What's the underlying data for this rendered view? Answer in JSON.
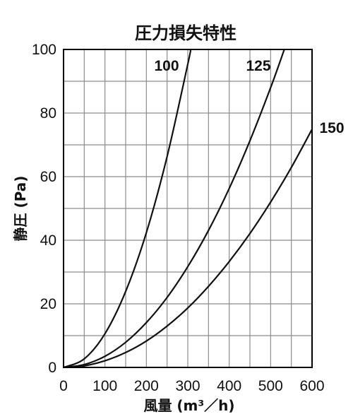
{
  "chart_data": {
    "type": "line",
    "title": "圧力損失特性",
    "xlabel": "風量 (m³／h)",
    "ylabel": "静圧 (Pa)",
    "xlim": [
      0,
      600
    ],
    "ylim": [
      0,
      100
    ],
    "x_ticks": [
      0,
      100,
      200,
      300,
      400,
      500,
      600
    ],
    "y_ticks": [
      0,
      20,
      40,
      60,
      80,
      100
    ],
    "grid": true,
    "grid_x_step": 50,
    "grid_y_step": 10,
    "legend": "inline labels at curve ends",
    "series": [
      {
        "name": "100",
        "x": [
          0,
          50,
          100,
          150,
          200,
          250,
          300,
          307
        ],
        "y": [
          0,
          2.7,
          10.6,
          23.9,
          42.4,
          66.3,
          95.4,
          100
        ]
      },
      {
        "name": "125",
        "x": [
          0,
          50,
          100,
          150,
          200,
          250,
          300,
          350,
          400,
          450,
          500,
          533
        ],
        "y": [
          0,
          0.9,
          3.5,
          7.9,
          14.1,
          22.0,
          31.7,
          43.1,
          56.3,
          71.3,
          88.0,
          100
        ]
      },
      {
        "name": "150",
        "x": [
          0,
          50,
          100,
          150,
          200,
          250,
          300,
          350,
          400,
          450,
          500,
          550,
          600
        ],
        "y": [
          0,
          0.5,
          2.1,
          4.7,
          8.3,
          13.0,
          18.7,
          25.5,
          33.3,
          42.1,
          52.0,
          62.9,
          74.9
        ]
      }
    ],
    "colors": {
      "line": "#111111",
      "grid": "#8c8c8c",
      "frame": "#000000",
      "background": "#ffffff"
    }
  }
}
